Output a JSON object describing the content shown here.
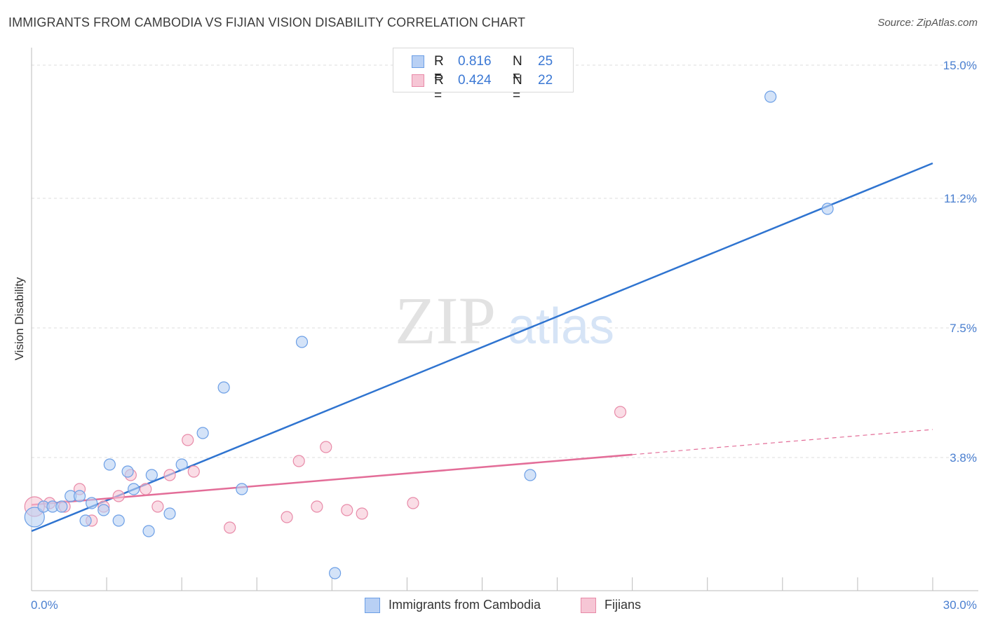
{
  "title": "IMMIGRANTS FROM CAMBODIA VS FIJIAN VISION DISABILITY CORRELATION CHART",
  "source": "Source: ZipAtlas.com",
  "watermark": {
    "zip": "ZIP",
    "atlas": "atlas"
  },
  "legend": {
    "rows": [
      {
        "r_label": "R =",
        "r_value": "0.816",
        "n_label": "N =",
        "n_value": "25"
      },
      {
        "r_label": "R =",
        "r_value": "0.424",
        "n_label": "N =",
        "n_value": "22"
      }
    ]
  },
  "bottom_legend": {
    "series_1": "Immigrants from Cambodia",
    "series_2": "Fijians"
  },
  "chart_data": {
    "type": "scatter",
    "title": "IMMIGRANTS FROM CAMBODIA VS FIJIAN VISION DISABILITY CORRELATION CHART",
    "xlabel": "",
    "ylabel": "Vision Disability",
    "xlim": [
      0,
      30
    ],
    "ylim": [
      0,
      15.3
    ],
    "x_tick_labels": [
      "0.0%",
      "30.0%"
    ],
    "y_ticks": [
      3.8,
      7.5,
      11.2,
      15.0
    ],
    "y_tick_labels": [
      "3.8%",
      "7.5%",
      "11.2%",
      "15.0%"
    ],
    "grid": true,
    "series": [
      {
        "name": "Immigrants from Cambodia",
        "color": "#6c9fe6",
        "fill": "#b8d0f4",
        "line_color": "#2f74d0",
        "points": [
          [
            0.1,
            2.1
          ],
          [
            0.4,
            2.4
          ],
          [
            0.7,
            2.4
          ],
          [
            1.0,
            2.4
          ],
          [
            1.3,
            2.7
          ],
          [
            1.6,
            2.7
          ],
          [
            1.8,
            2.0
          ],
          [
            2.0,
            2.5
          ],
          [
            2.4,
            2.3
          ],
          [
            2.6,
            3.6
          ],
          [
            2.9,
            2.0
          ],
          [
            3.2,
            3.4
          ],
          [
            3.4,
            2.9
          ],
          [
            3.9,
            1.7
          ],
          [
            4.0,
            3.3
          ],
          [
            4.6,
            2.2
          ],
          [
            5.0,
            3.6
          ],
          [
            5.7,
            4.5
          ],
          [
            7.0,
            2.9
          ],
          [
            6.4,
            5.8
          ],
          [
            9.0,
            7.1
          ],
          [
            10.1,
            0.5
          ],
          [
            16.6,
            3.3
          ],
          [
            24.6,
            14.1
          ],
          [
            26.5,
            10.9
          ]
        ],
        "trend": {
          "x": [
            0,
            30
          ],
          "y": [
            1.7,
            12.2
          ],
          "dashed_from": null
        }
      },
      {
        "name": "Fijians",
        "color": "#e88aa8",
        "fill": "#f6c6d5",
        "line_color": "#e36d98",
        "points": [
          [
            0.1,
            2.4
          ],
          [
            0.6,
            2.5
          ],
          [
            1.1,
            2.4
          ],
          [
            1.6,
            2.9
          ],
          [
            2.0,
            2.0
          ],
          [
            2.4,
            2.4
          ],
          [
            2.9,
            2.7
          ],
          [
            3.3,
            3.3
          ],
          [
            3.8,
            2.9
          ],
          [
            4.2,
            2.4
          ],
          [
            4.6,
            3.3
          ],
          [
            5.2,
            4.3
          ],
          [
            5.4,
            3.4
          ],
          [
            6.6,
            1.8
          ],
          [
            8.5,
            2.1
          ],
          [
            8.9,
            3.7
          ],
          [
            9.5,
            2.4
          ],
          [
            9.8,
            4.1
          ],
          [
            10.5,
            2.3
          ],
          [
            11.0,
            2.2
          ],
          [
            12.7,
            2.5
          ],
          [
            19.6,
            5.1
          ]
        ],
        "trend": {
          "x": [
            0,
            30
          ],
          "y": [
            2.45,
            4.6
          ],
          "dashed_from": 20.0
        }
      }
    ]
  }
}
